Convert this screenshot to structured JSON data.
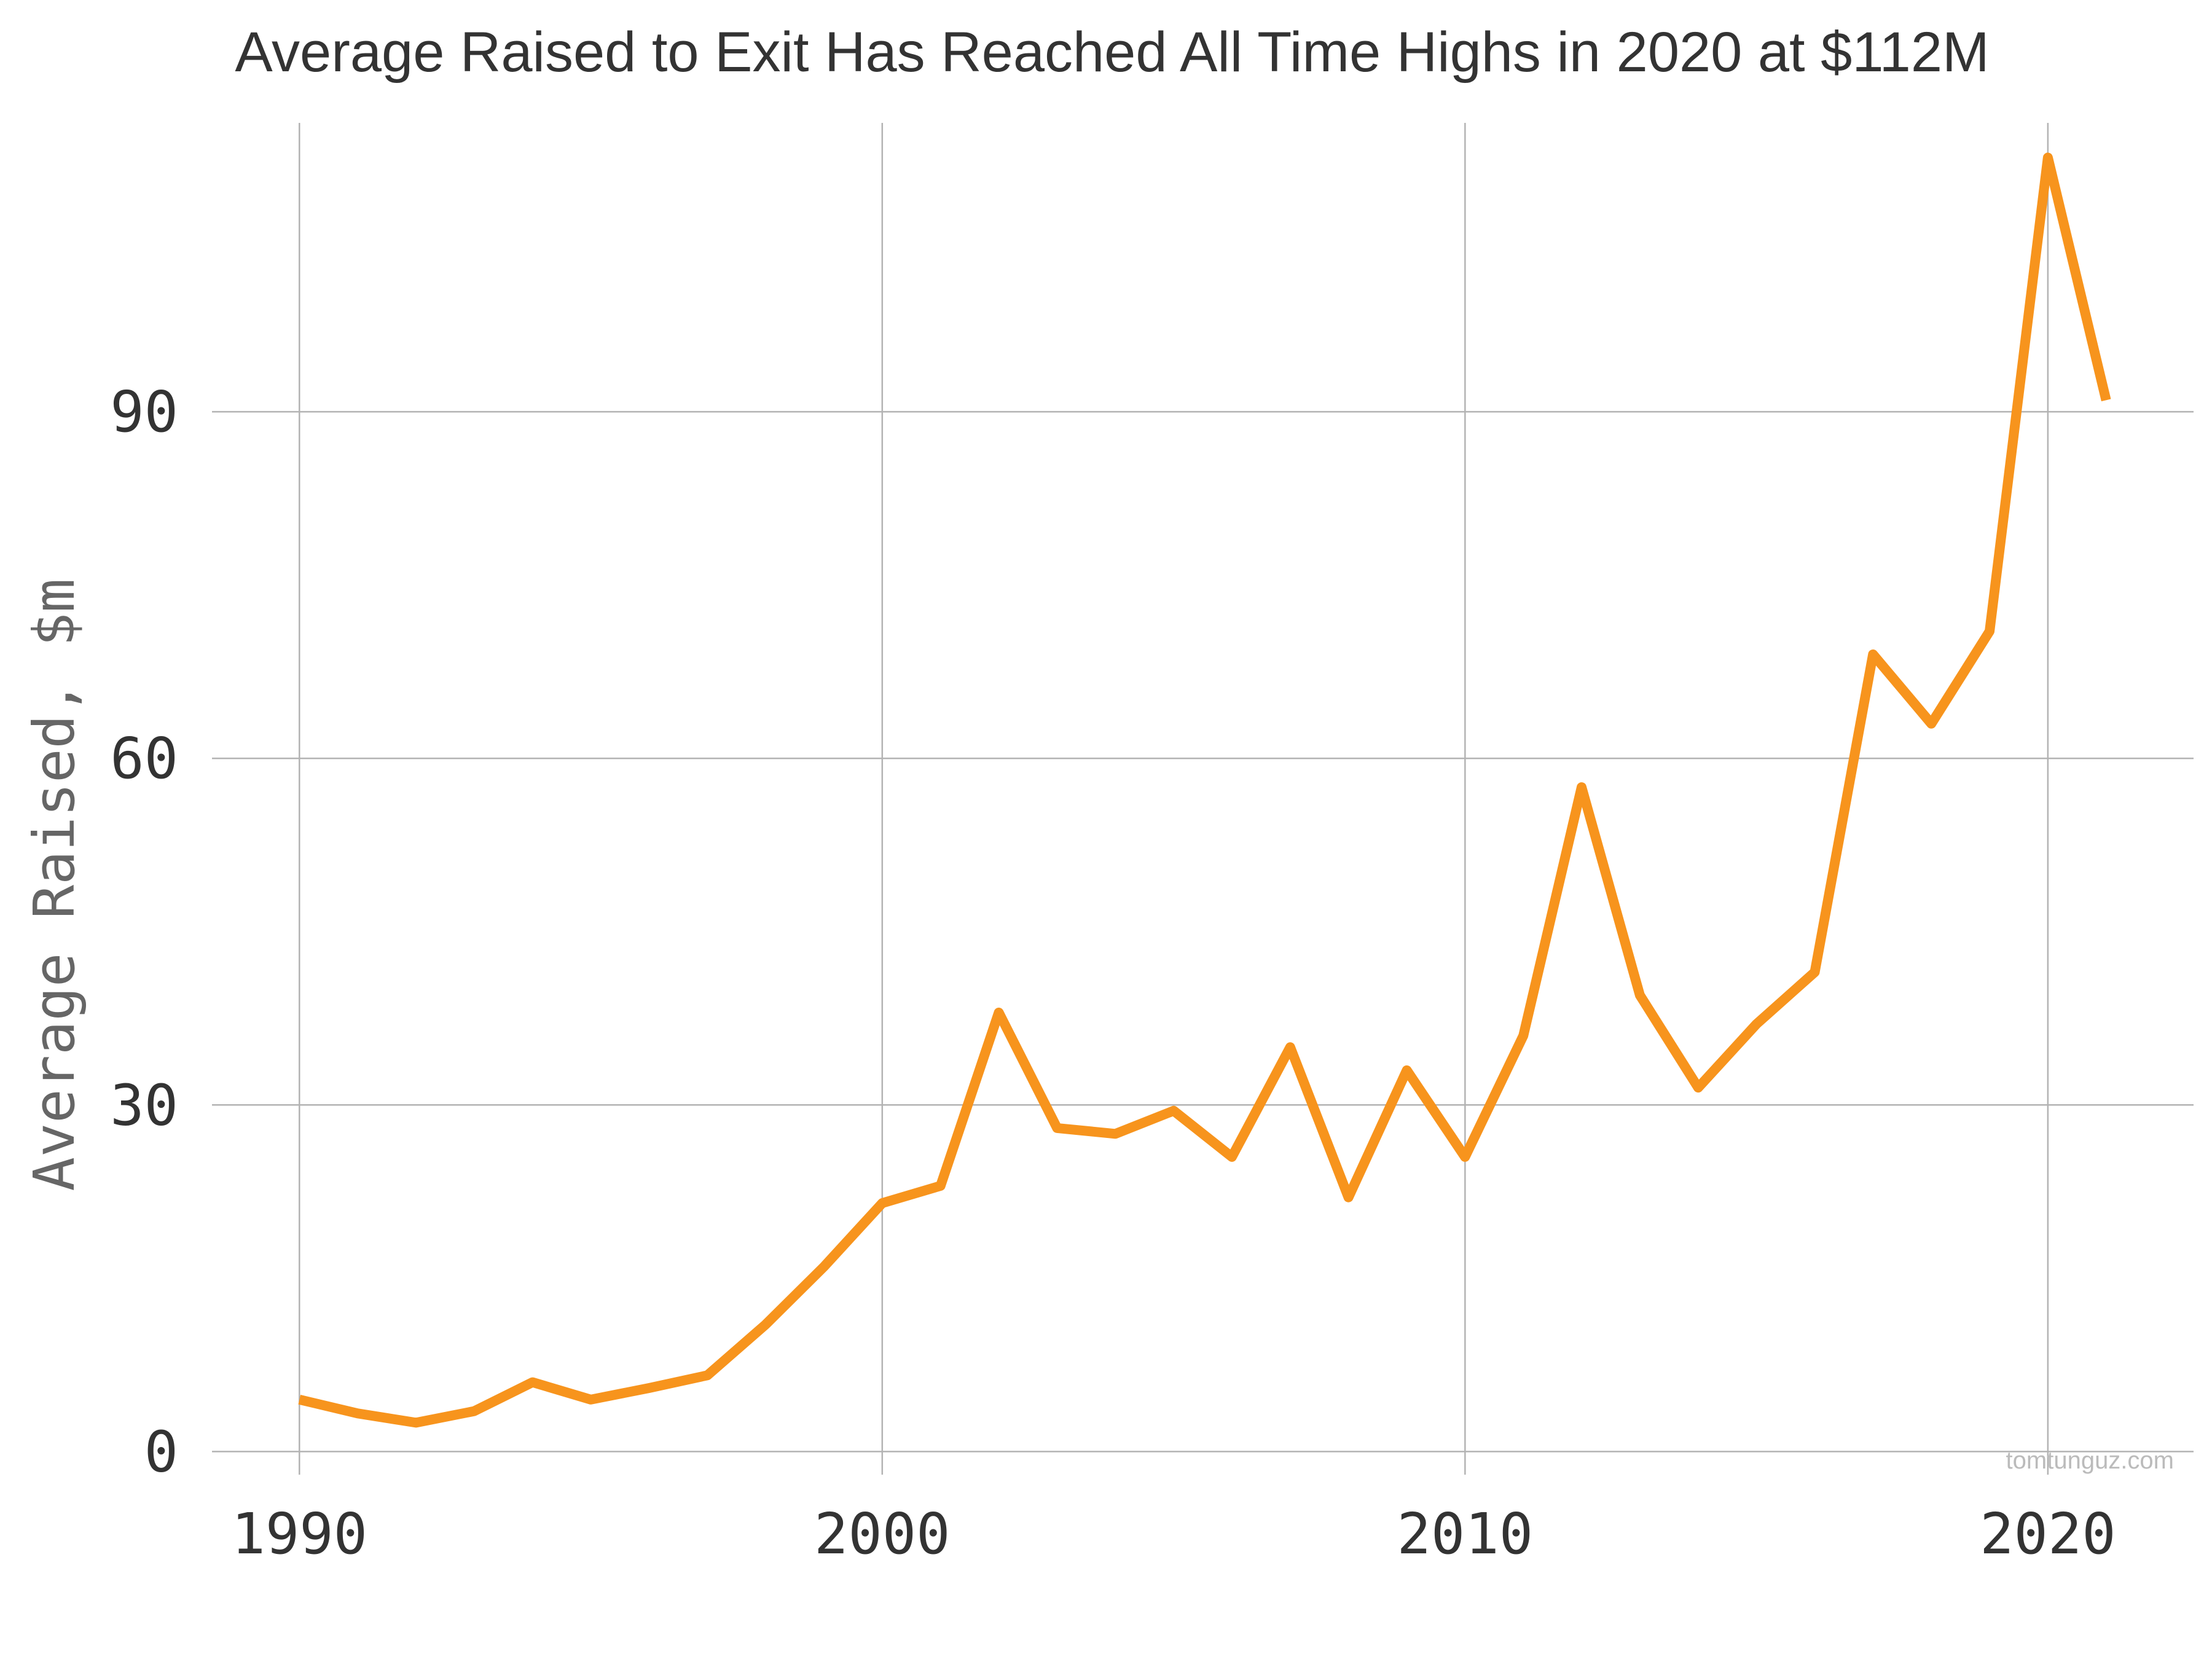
{
  "chart_data": {
    "type": "line",
    "title": "Average Raised to Exit Has Reached All Time Highs in 2020 at $112M",
    "xlabel": "",
    "ylabel": "Average Raised, $m",
    "xlim": [
      1988.5,
      2022.5
    ],
    "ylim": [
      -2,
      115
    ],
    "xticks": [
      1990,
      2000,
      2010,
      2020
    ],
    "yticks": [
      0,
      30,
      60,
      90
    ],
    "grid": true,
    "color": "#f7941d",
    "x": [
      1990,
      1991,
      1992,
      1993,
      1994,
      1995,
      1996,
      1997,
      1998,
      1999,
      2000,
      2001,
      2002,
      2003,
      2004,
      2005,
      2006,
      2007,
      2008,
      2009,
      2010,
      2011,
      2012,
      2013,
      2014,
      2015,
      2016,
      2017,
      2018,
      2019,
      2020,
      2021
    ],
    "values": [
      4.5,
      3.3,
      2.5,
      3.5,
      6.0,
      4.5,
      5.5,
      6.6,
      11.0,
      16.0,
      21.5,
      23.0,
      38.0,
      28.0,
      27.5,
      29.5,
      25.5,
      35.0,
      22.0,
      33.0,
      25.5,
      36.0,
      57.5,
      39.5,
      31.5,
      37.0,
      41.5,
      69.0,
      63.0,
      71.0,
      112.0,
      91.0
    ]
  },
  "watermark": "tomtunguz.com"
}
